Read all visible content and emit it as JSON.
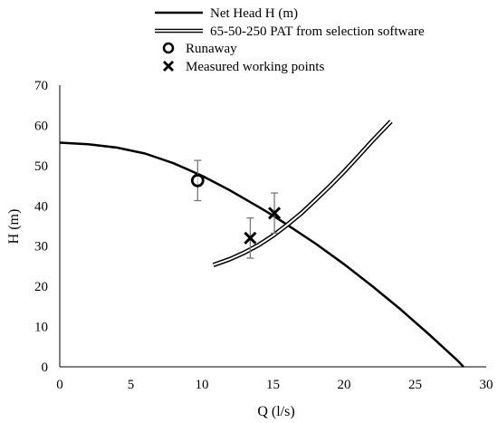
{
  "chart_data": {
    "type": "line",
    "xlabel": "Q (l/s)",
    "ylabel": "H (m)",
    "xlim": [
      0,
      30
    ],
    "ylim": [
      0,
      70
    ],
    "x_ticks": [
      0,
      5,
      10,
      15,
      20,
      25,
      30
    ],
    "y_ticks": [
      0,
      10,
      20,
      30,
      40,
      50,
      60,
      70
    ],
    "grid": false,
    "legend_position": "top",
    "series": [
      {
        "name": "Net Head H (m)",
        "kind": "line",
        "style": "solid-black",
        "x": [
          0,
          2,
          4,
          6,
          8,
          10,
          12,
          14,
          15,
          16,
          18,
          20,
          22,
          24,
          26,
          28,
          28.4
        ],
        "y": [
          55.7,
          55.3,
          54.5,
          53.0,
          50.6,
          47.5,
          43.8,
          39.7,
          37.6,
          35.3,
          30.6,
          25.5,
          20.0,
          14.2,
          8.0,
          1.5,
          0.0
        ]
      },
      {
        "name": "65-50-250 PAT from selection software",
        "kind": "line",
        "style": "double-line",
        "x": [
          10.8,
          12,
          13,
          14,
          15,
          16,
          17,
          18,
          19,
          20,
          21,
          22,
          23.3
        ],
        "y": [
          25.3,
          26.8,
          28.4,
          30.3,
          32.6,
          35.3,
          38.2,
          41.5,
          44.9,
          48.5,
          52.3,
          56.2,
          61.0
        ]
      },
      {
        "name": "Runaway",
        "kind": "marker",
        "marker": "circle",
        "points": [
          {
            "x": 9.7,
            "y": 46.3,
            "err": 5.0
          }
        ]
      },
      {
        "name": "Measured working points",
        "kind": "marker",
        "marker": "x",
        "points": [
          {
            "x": 13.4,
            "y": 32.0,
            "err": 5.0
          },
          {
            "x": 15.1,
            "y": 38.2,
            "err": 5.0
          }
        ]
      }
    ]
  }
}
